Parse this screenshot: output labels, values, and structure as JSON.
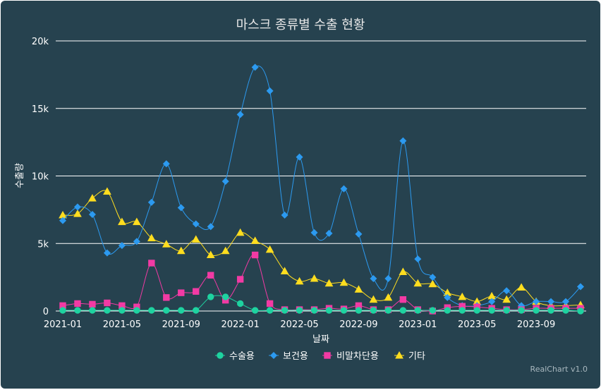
{
  "chart_data": {
    "type": "line",
    "title": "마스크 종류별 수출 현황",
    "xlabel": "날짜",
    "ylabel": "수출량",
    "credit": "RealChart v1.0",
    "ylim": [
      0,
      20000
    ],
    "y_ticks": [
      {
        "value": 0,
        "label": "0"
      },
      {
        "value": 5000,
        "label": "5k"
      },
      {
        "value": 10000,
        "label": "10k"
      },
      {
        "value": 15000,
        "label": "15k"
      },
      {
        "value": 20000,
        "label": "20k"
      }
    ],
    "x": [
      "2021-01",
      "2021-02",
      "2021-03",
      "2021-04",
      "2021-05",
      "2021-06",
      "2021-07",
      "2021-08",
      "2021-09",
      "2021-10",
      "2021-11",
      "2021-12",
      "2022-01",
      "2022-02",
      "2022-03",
      "2022-04",
      "2022-05",
      "2022-06",
      "2022-07",
      "2022-08",
      "2022-09",
      "2022-10",
      "2022-11",
      "2022-12",
      "2023-01",
      "2023-02",
      "2023-03",
      "2023-04",
      "2023-05",
      "2023-06",
      "2023-07",
      "2023-08",
      "2023-09",
      "2023-10",
      "2023-11",
      "2023-12"
    ],
    "x_tick_labels": [
      "2021-01",
      "2021-05",
      "2021-09",
      "2022-01",
      "2022-05",
      "2022-09",
      "2023-01",
      "2023-05",
      "2023-09"
    ],
    "legend_position": "bottom",
    "grid": true,
    "series": [
      {
        "name": "수술용",
        "color": "#1ed3a0",
        "marker": "circle",
        "values": [
          50,
          50,
          50,
          50,
          50,
          50,
          50,
          50,
          50,
          50,
          1050,
          1050,
          550,
          50,
          50,
          50,
          50,
          50,
          50,
          50,
          50,
          50,
          50,
          50,
          50,
          50,
          50,
          50,
          50,
          50,
          50,
          50,
          50,
          50,
          50,
          0
        ]
      },
      {
        "name": "보건용",
        "color": "#2c9af0",
        "marker": "diamond",
        "values": [
          6700,
          7700,
          7150,
          4300,
          4850,
          5150,
          8050,
          10900,
          7650,
          6450,
          6250,
          9600,
          14550,
          18050,
          16300,
          7100,
          11400,
          5800,
          5750,
          9050,
          5700,
          2400,
          2400,
          12600,
          3850,
          2500,
          1000,
          400,
          400,
          700,
          1500,
          400,
          700,
          700,
          700,
          1800
        ]
      },
      {
        "name": "비말차단용",
        "color": "#f23aa4",
        "marker": "square",
        "values": [
          400,
          550,
          500,
          600,
          400,
          300,
          3550,
          1000,
          1350,
          1450,
          2650,
          800,
          2350,
          4150,
          550,
          100,
          100,
          100,
          200,
          150,
          400,
          100,
          100,
          850,
          100,
          0,
          250,
          350,
          300,
          200,
          100,
          100,
          200,
          200,
          200,
          200
        ]
      },
      {
        "name": "기타",
        "color": "#ffdd1f",
        "marker": "triangle",
        "values": [
          7100,
          7200,
          8350,
          8850,
          6600,
          6600,
          5400,
          4950,
          4450,
          5300,
          4150,
          4450,
          5800,
          5200,
          4550,
          2950,
          2200,
          2400,
          2050,
          2100,
          1600,
          850,
          1000,
          2900,
          2050,
          2000,
          1350,
          1050,
          700,
          1100,
          850,
          1750,
          700,
          400,
          400,
          450
        ]
      }
    ]
  }
}
